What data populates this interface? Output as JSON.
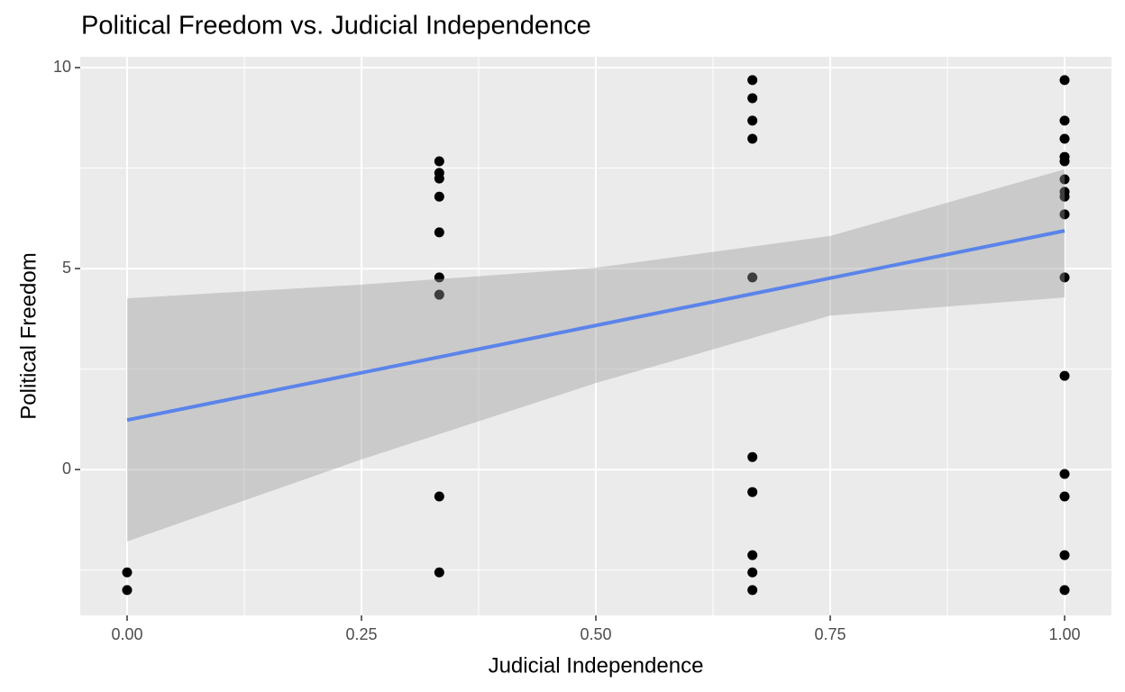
{
  "chart_data": {
    "type": "scatter",
    "title": "Political Freedom vs. Judicial Independence",
    "x_label": "Judicial Independence",
    "y_label": "Political Freedom",
    "xlim": [
      -0.05,
      1.05
    ],
    "ylim": [
      -3.63,
      10.27
    ],
    "xticks": [
      {
        "value": 0,
        "label": "0.00"
      },
      {
        "value": 0.25,
        "label": "0.25"
      },
      {
        "value": 0.5,
        "label": "0.50"
      },
      {
        "value": 0.75,
        "label": "0.75"
      },
      {
        "value": 1,
        "label": "1.00"
      }
    ],
    "yticks": [
      0,
      5,
      10
    ],
    "minor_xticks": [
      0.125,
      0.375,
      0.625,
      0.875
    ],
    "minor_yticks": [
      -2.5,
      2.5,
      7.5
    ],
    "grid": true,
    "points": {
      "color": "#000000",
      "x": [
        0,
        0,
        0.333,
        0.333,
        0.333,
        0.333,
        0.333,
        0.333,
        0.333,
        0.333,
        0.333,
        0.667,
        0.667,
        0.667,
        0.667,
        0.667,
        0.667,
        0.667,
        0.667,
        0.667,
        0.667,
        1,
        1,
        1,
        1,
        1,
        1,
        1,
        1,
        1,
        1,
        1,
        1,
        1,
        1,
        1
      ],
      "y": [
        -2.56,
        -3.0,
        7.67,
        7.38,
        7.24,
        6.79,
        5.9,
        4.78,
        4.35,
        -0.67,
        -2.56,
        9.69,
        9.24,
        8.68,
        8.23,
        4.78,
        0.31,
        -0.56,
        -2.13,
        -2.56,
        -3.0,
        9.69,
        8.68,
        8.23,
        7.78,
        7.67,
        7.22,
        6.91,
        6.79,
        6.35,
        4.78,
        2.33,
        -0.11,
        -0.67,
        -2.13,
        -3.0
      ]
    },
    "fit": {
      "color": "#5b84ea",
      "x": [
        0,
        1
      ],
      "y": [
        1.23,
        5.94
      ]
    },
    "ribbon": {
      "color": "#999999",
      "x": [
        0,
        0.25,
        0.5,
        0.75,
        1
      ],
      "lower": [
        -1.79,
        0.25,
        2.15,
        3.83,
        4.28
      ],
      "upper": [
        4.26,
        4.6,
        5.02,
        5.81,
        7.47
      ]
    }
  }
}
